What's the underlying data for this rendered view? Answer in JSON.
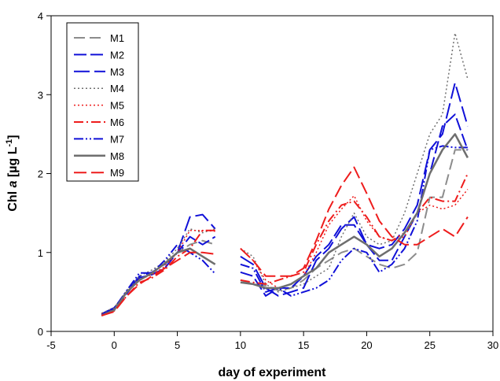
{
  "chart_data": {
    "type": "line",
    "xlabel": "day of experiment",
    "ylabel_parts": {
      "pre": "Chl ",
      "italic": "a",
      "mid": " [µg L",
      "sup": "-1",
      "post": "]"
    },
    "xlim": [
      -5,
      30
    ],
    "ylim": [
      0,
      4
    ],
    "xticks": [
      "-5",
      "0",
      "5",
      "10",
      "15",
      "20",
      "25",
      "30"
    ],
    "yticks": [
      "0",
      "1",
      "2",
      "3",
      "4"
    ],
    "grid": false,
    "legend_position": "top-left",
    "series": [
      {
        "name": "M1",
        "color": "#8c8c8c",
        "dash": "14,6",
        "width": 2,
        "x": [
          -1,
          0,
          1,
          2,
          3,
          4,
          5,
          6,
          7,
          8,
          10,
          11,
          12,
          13,
          14,
          15,
          16,
          17,
          18,
          19,
          20,
          21,
          22,
          23,
          24,
          25,
          26,
          27,
          28
        ],
        "y": [
          0.22,
          0.3,
          0.5,
          0.65,
          0.75,
          0.85,
          1.0,
          1.1,
          1.15,
          1.1,
          0.65,
          0.6,
          0.58,
          0.52,
          0.55,
          0.65,
          0.8,
          0.9,
          1.0,
          1.05,
          0.95,
          0.85,
          0.8,
          0.85,
          1.0,
          1.7,
          1.7,
          2.3,
          2.3
        ]
      },
      {
        "name": "M2",
        "color": "#1010d8",
        "dash": "16,5",
        "width": 2,
        "x": [
          -1,
          0,
          1,
          2,
          3,
          4,
          5,
          6,
          7,
          8,
          10,
          11,
          12,
          13,
          14,
          15,
          16,
          17,
          18,
          19,
          20,
          21,
          22,
          23,
          24,
          25,
          26,
          27,
          28
        ],
        "y": [
          0.2,
          0.28,
          0.48,
          0.68,
          0.72,
          0.8,
          1.0,
          1.2,
          1.1,
          1.2,
          0.75,
          0.7,
          0.45,
          0.55,
          0.55,
          0.7,
          0.95,
          1.1,
          1.35,
          1.35,
          1.1,
          0.9,
          0.9,
          1.2,
          1.5,
          2.0,
          2.6,
          2.75,
          2.3
        ]
      },
      {
        "name": "M3",
        "color": "#1010d8",
        "dash": "20,6",
        "width": 2,
        "x": [
          -1,
          0,
          1,
          2,
          3,
          4,
          5,
          6,
          7,
          8,
          10,
          11,
          12,
          13,
          14,
          15,
          16,
          17,
          18,
          19,
          20,
          21,
          22,
          23,
          24,
          25,
          26,
          27,
          28
        ],
        "y": [
          0.22,
          0.3,
          0.5,
          0.7,
          0.75,
          0.85,
          1.0,
          1.45,
          1.48,
          1.3,
          0.95,
          0.85,
          0.55,
          0.45,
          0.5,
          0.55,
          0.9,
          1.05,
          1.3,
          1.45,
          1.1,
          1.05,
          1.1,
          1.3,
          1.6,
          2.3,
          2.5,
          3.15,
          2.6
        ]
      },
      {
        "name": "M4",
        "color": "#707070",
        "dash": "2,3",
        "width": 1.5,
        "x": [
          -1,
          0,
          1,
          2,
          3,
          4,
          5,
          6,
          7,
          8,
          10,
          11,
          12,
          13,
          14,
          15,
          16,
          17,
          18,
          19,
          20,
          21,
          22,
          23,
          24,
          25,
          26,
          27,
          28
        ],
        "y": [
          0.23,
          0.3,
          0.52,
          0.7,
          0.78,
          0.88,
          1.05,
          1.3,
          1.25,
          1.3,
          1.05,
          0.95,
          0.6,
          0.5,
          0.55,
          0.6,
          0.7,
          0.8,
          1.2,
          1.5,
          1.2,
          1.1,
          1.15,
          1.5,
          2.0,
          2.5,
          2.75,
          3.78,
          3.2
        ]
      },
      {
        "name": "M5",
        "color": "#ee1c1c",
        "dash": "2,3",
        "width": 1.5,
        "x": [
          -1,
          0,
          1,
          2,
          3,
          4,
          5,
          6,
          7,
          8,
          10,
          11,
          12,
          13,
          14,
          15,
          16,
          17,
          18,
          19,
          20,
          21,
          22,
          23,
          24,
          25,
          26,
          27,
          28
        ],
        "y": [
          0.22,
          0.28,
          0.5,
          0.66,
          0.72,
          0.82,
          1.0,
          1.28,
          1.28,
          1.27,
          1.05,
          0.9,
          0.65,
          0.55,
          0.6,
          0.7,
          1.0,
          1.35,
          1.55,
          1.72,
          1.4,
          1.2,
          1.15,
          1.2,
          1.5,
          1.6,
          1.55,
          1.6,
          1.8
        ]
      },
      {
        "name": "M6",
        "color": "#ee1c1c",
        "dash": "12,4,2,4",
        "width": 2,
        "x": [
          -1,
          0,
          1,
          2,
          3,
          4,
          5,
          6,
          7,
          8,
          10,
          11,
          12,
          13,
          14,
          15,
          16,
          17,
          18,
          19,
          20,
          21,
          22,
          23,
          24,
          25,
          26,
          27,
          28
        ],
        "y": [
          0.2,
          0.26,
          0.45,
          0.62,
          0.68,
          0.78,
          0.95,
          1.05,
          1.28,
          1.28,
          0.65,
          0.62,
          0.6,
          0.65,
          0.7,
          0.75,
          1.1,
          1.4,
          1.6,
          1.65,
          1.45,
          1.2,
          1.15,
          1.25,
          1.5,
          1.7,
          1.65,
          1.65,
          2.0
        ]
      },
      {
        "name": "M7",
        "color": "#1010d8",
        "dash": "12,3,2,3,2,3",
        "width": 2,
        "x": [
          -1,
          0,
          1,
          2,
          3,
          4,
          5,
          6,
          7,
          8,
          10,
          11,
          12,
          13,
          14,
          15,
          16,
          17,
          18,
          19,
          20,
          21,
          22,
          23,
          24,
          25,
          26,
          27,
          28
        ],
        "y": [
          0.21,
          0.29,
          0.52,
          0.74,
          0.74,
          0.9,
          1.1,
          1.0,
          0.9,
          0.73,
          0.85,
          0.8,
          0.5,
          0.55,
          0.45,
          0.5,
          0.55,
          0.65,
          0.9,
          1.05,
          1.0,
          0.75,
          0.85,
          1.05,
          1.4,
          2.3,
          2.35,
          2.33,
          2.33
        ]
      },
      {
        "name": "M8",
        "color": "#6e6e6e",
        "dash": "",
        "width": 2.5,
        "x": [
          -1,
          0,
          1,
          2,
          3,
          4,
          5,
          6,
          7,
          8,
          10,
          11,
          12,
          13,
          14,
          15,
          16,
          17,
          18,
          19,
          20,
          21,
          22,
          23,
          24,
          25,
          26,
          27,
          28
        ],
        "y": [
          0.2,
          0.27,
          0.5,
          0.65,
          0.74,
          0.86,
          1.0,
          1.05,
          0.95,
          0.85,
          0.62,
          0.6,
          0.55,
          0.55,
          0.6,
          0.7,
          0.8,
          1.0,
          1.1,
          1.2,
          1.1,
          0.95,
          1.05,
          1.25,
          1.5,
          2.0,
          2.3,
          2.5,
          2.2
        ]
      },
      {
        "name": "M9",
        "color": "#ee1c1c",
        "dash": "16,6",
        "width": 2,
        "x": [
          -1,
          0,
          1,
          2,
          3,
          4,
          5,
          6,
          7,
          8,
          10,
          11,
          12,
          13,
          14,
          15,
          16,
          17,
          18,
          19,
          20,
          21,
          22,
          23,
          24,
          25,
          26,
          27,
          28
        ],
        "y": [
          0.2,
          0.25,
          0.45,
          0.6,
          0.7,
          0.8,
          0.9,
          1.0,
          1.0,
          0.98,
          1.05,
          0.9,
          0.7,
          0.7,
          0.7,
          0.8,
          1.15,
          1.55,
          1.85,
          2.08,
          1.75,
          1.4,
          1.2,
          1.1,
          1.1,
          1.2,
          1.3,
          1.2,
          1.45
        ]
      }
    ]
  }
}
